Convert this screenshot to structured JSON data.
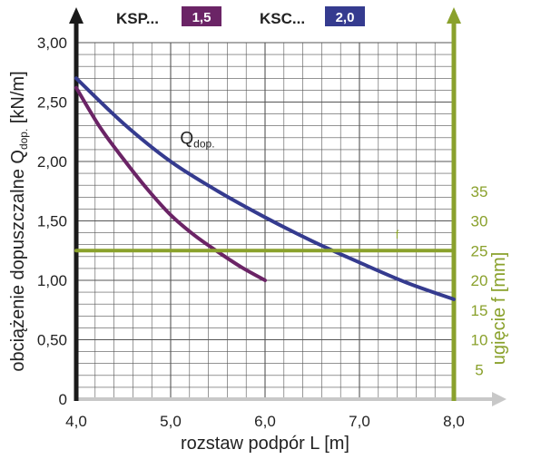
{
  "chart_data": {
    "type": "line",
    "xlabel": "rozstaw podpór L [m]",
    "ylabel_main": "obciążenie dopuszczalne Q",
    "ylabel_sub": "dop.",
    "ylabel_unit": " [kN/m]",
    "y2label": "ugięcie f [mm]",
    "xlim": [
      4.0,
      8.0
    ],
    "ylim": [
      0,
      3.0
    ],
    "y2lim": [
      0,
      60
    ],
    "x_ticks": [
      4.0,
      5.0,
      6.0,
      7.0,
      8.0
    ],
    "x_tick_labels": [
      "4,0",
      "5,0",
      "6,0",
      "7,0",
      "8,0"
    ],
    "y_ticks": [
      0,
      0.5,
      1.0,
      1.5,
      2.0,
      2.5,
      3.0
    ],
    "y_tick_labels": [
      "0",
      "0,50",
      "1,00",
      "1,50",
      "2,00",
      "2,50",
      "3,00"
    ],
    "y2_ticks": [
      5,
      10,
      15,
      20,
      25,
      30,
      35
    ],
    "y2_tick_labels": [
      "5",
      "10",
      "15",
      "20",
      "25",
      "30",
      "35"
    ],
    "grid": true,
    "legend": [
      {
        "label": "KSP...",
        "badge": "1,5",
        "color": "#6b2466"
      },
      {
        "label": "KSC...",
        "badge": "2,0",
        "color": "#353b8f"
      }
    ],
    "series": [
      {
        "name": "1,5",
        "color": "#6b2466",
        "axis": "left",
        "x": [
          4.0,
          4.25,
          4.5,
          4.75,
          5.0,
          5.25,
          5.5,
          5.75,
          6.0
        ],
        "y": [
          2.62,
          2.29,
          2.02,
          1.77,
          1.55,
          1.38,
          1.24,
          1.11,
          1.0
        ]
      },
      {
        "name": "2,0",
        "color": "#353b8f",
        "axis": "left",
        "x": [
          4.0,
          4.5,
          5.0,
          5.5,
          6.0,
          6.5,
          7.0,
          7.5,
          8.0
        ],
        "y": [
          2.7,
          2.32,
          2.0,
          1.75,
          1.53,
          1.33,
          1.15,
          0.98,
          0.84
        ]
      },
      {
        "name": "f",
        "color": "#8aa12c",
        "axis": "right",
        "x": [
          4.0,
          8.0
        ],
        "y": [
          25,
          25
        ]
      }
    ],
    "annotations": [
      {
        "text": "Q",
        "sub": "dop.",
        "x": 5.1,
        "y": 2.15
      },
      {
        "text": "f",
        "x": 7.4,
        "y2": 27
      }
    ],
    "colors": {
      "axis_main": "#1a1a1a",
      "axis_right": "#8aa12c",
      "x_axis_arrow": "#c8c8c8",
      "grid": "#555555"
    }
  }
}
